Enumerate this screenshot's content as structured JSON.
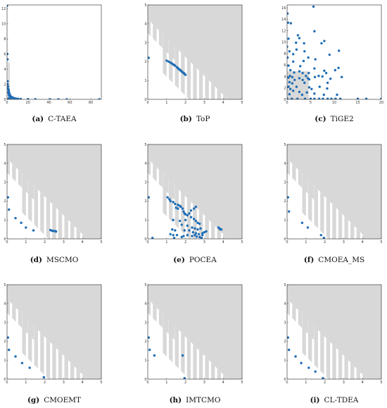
{
  "chart_data": [
    {
      "type": "scatter",
      "caption": {
        "letter": "(a)",
        "name": "C-TAEA"
      },
      "xlim": [
        0,
        90
      ],
      "ylim": [
        0,
        12.5
      ],
      "xticks": [
        0,
        20,
        40,
        60,
        80
      ],
      "yticks": [
        0,
        2,
        4,
        6,
        8,
        10,
        12
      ],
      "feasible_rect": [
        1.0,
        2.6,
        0,
        4.9
      ],
      "points": [
        [
          0,
          12.4
        ],
        [
          0.3,
          6.0
        ],
        [
          0.5,
          5.3
        ],
        [
          0.6,
          2.4
        ],
        [
          0.5,
          2.0
        ],
        [
          1.0,
          1.7
        ],
        [
          0.8,
          1.4
        ],
        [
          1.5,
          1.3
        ],
        [
          1.6,
          1.1
        ],
        [
          1.2,
          0.9
        ],
        [
          2.0,
          0.9
        ],
        [
          2.3,
          0.7
        ],
        [
          1.7,
          0.6
        ],
        [
          2.8,
          0.55
        ],
        [
          3.2,
          0.45
        ],
        [
          2.4,
          0.4
        ],
        [
          3.7,
          0.35
        ],
        [
          4.2,
          0.3
        ],
        [
          4.6,
          0.28
        ],
        [
          5.1,
          0.25
        ],
        [
          5.5,
          0.22
        ],
        [
          6.0,
          0.2
        ],
        [
          3.9,
          0.15
        ],
        [
          6.5,
          0.15
        ],
        [
          7.3,
          0.12
        ],
        [
          8.5,
          0.1
        ],
        [
          10.5,
          0.08
        ],
        [
          13,
          0.05
        ],
        [
          20,
          0.03
        ],
        [
          27,
          0.02
        ],
        [
          41,
          0.01
        ],
        [
          49,
          0.01
        ],
        [
          57,
          0.01
        ],
        [
          88,
          0.0
        ],
        [
          1.5,
          0.1
        ],
        [
          2.8,
          0.05
        ]
      ]
    },
    {
      "type": "scatter",
      "caption": {
        "letter": "(b)",
        "name": "ToP"
      },
      "xlim": [
        0,
        5
      ],
      "ylim": [
        0,
        5
      ],
      "xticks": [
        0,
        1,
        2,
        3,
        4,
        5
      ],
      "yticks": [
        0,
        1,
        2,
        3,
        4,
        5
      ],
      "points": [
        [
          0.05,
          2.2
        ],
        [
          1.0,
          2.05
        ],
        [
          1.1,
          2.0
        ],
        [
          1.2,
          1.95
        ],
        [
          1.28,
          1.9
        ],
        [
          1.35,
          1.85
        ],
        [
          1.4,
          1.82
        ],
        [
          1.45,
          1.78
        ],
        [
          1.55,
          1.7
        ],
        [
          1.6,
          1.65
        ],
        [
          1.65,
          1.6
        ],
        [
          1.7,
          1.57
        ],
        [
          1.75,
          1.52
        ],
        [
          1.8,
          1.48
        ],
        [
          1.85,
          1.43
        ],
        [
          1.9,
          1.4
        ],
        [
          1.95,
          1.35
        ],
        [
          2.0,
          1.3
        ],
        [
          1.72,
          1.55
        ],
        [
          1.92,
          1.38
        ]
      ]
    },
    {
      "type": "scatter",
      "caption": {
        "letter": "(c)",
        "name": "TiGE2"
      },
      "xlim": [
        0,
        20
      ],
      "ylim": [
        0,
        16.5
      ],
      "xticks": [
        0,
        5,
        10,
        15,
        20
      ],
      "yticks": [
        0,
        2,
        4,
        6,
        8,
        10,
        12,
        14,
        16
      ],
      "feasible_rect": [
        0,
        4.6,
        0,
        4.9
      ],
      "points": [
        [
          5.6,
          16.2
        ],
        [
          0.1,
          15.0
        ],
        [
          0.2,
          13.4
        ],
        [
          0.8,
          13.3
        ],
        [
          2.3,
          11.2
        ],
        [
          0.3,
          10.6
        ],
        [
          2.6,
          10.7
        ],
        [
          1.9,
          9.9
        ],
        [
          3.6,
          9.8
        ],
        [
          7.3,
          9.8
        ],
        [
          11.0,
          8.5
        ],
        [
          7.9,
          10.2
        ],
        [
          5.8,
          11.9
        ],
        [
          0.0,
          9.2
        ],
        [
          2.0,
          8.7
        ],
        [
          0.5,
          8.4
        ],
        [
          3.7,
          8.4
        ],
        [
          1.3,
          7.9
        ],
        [
          0.1,
          7.3
        ],
        [
          4.5,
          7.3
        ],
        [
          9.0,
          7.8
        ],
        [
          1.3,
          6.6
        ],
        [
          3.5,
          6.7
        ],
        [
          0.3,
          5.9
        ],
        [
          2.8,
          5.8
        ],
        [
          6.0,
          7.0
        ],
        [
          5.8,
          5.4
        ],
        [
          10.9,
          5.5
        ],
        [
          7.9,
          5.0
        ],
        [
          10.2,
          5.1
        ],
        [
          0.7,
          5.1
        ],
        [
          2.6,
          4.9
        ],
        [
          1.5,
          4.7
        ],
        [
          3.3,
          4.6
        ],
        [
          4.6,
          4.6
        ],
        [
          8.3,
          4.6
        ],
        [
          4.0,
          4.1
        ],
        [
          0.6,
          4.1
        ],
        [
          1.1,
          3.9
        ],
        [
          5.9,
          3.9
        ],
        [
          6.7,
          4.1
        ],
        [
          7.5,
          4.0
        ],
        [
          11.6,
          3.9
        ],
        [
          0.3,
          3.8
        ],
        [
          2.6,
          3.7
        ],
        [
          4.4,
          3.7
        ],
        [
          9.2,
          3.6
        ],
        [
          1.6,
          3.4
        ],
        [
          3.3,
          3.4
        ],
        [
          4.7,
          3.5
        ],
        [
          0.5,
          3.0
        ],
        [
          1.1,
          2.8
        ],
        [
          3.7,
          2.9
        ],
        [
          8.6,
          2.9
        ],
        [
          0.3,
          2.2
        ],
        [
          2.0,
          2.2
        ],
        [
          4.7,
          2.1
        ],
        [
          6.9,
          2.2
        ],
        [
          0.7,
          1.8
        ],
        [
          5.2,
          1.8
        ],
        [
          8.5,
          1.9
        ],
        [
          1.3,
          1.5
        ],
        [
          2.6,
          1.3
        ],
        [
          4.2,
          1.2
        ],
        [
          5.8,
          1.0
        ],
        [
          0.5,
          0.9
        ],
        [
          3.2,
          0.8
        ],
        [
          7.8,
          0.8
        ],
        [
          10.6,
          0.8
        ],
        [
          0.0,
          0.1
        ],
        [
          1.0,
          0.1
        ],
        [
          2.2,
          0.1
        ],
        [
          3.8,
          0.1
        ],
        [
          5.0,
          0.1
        ],
        [
          5.8,
          0.1
        ],
        [
          6.8,
          0.1
        ],
        [
          7.6,
          0.1
        ],
        [
          8.6,
          0.1
        ],
        [
          9.4,
          0.1
        ],
        [
          10.3,
          0.1
        ],
        [
          11.3,
          0.1
        ],
        [
          15.0,
          0.1
        ],
        [
          16.8,
          0.1
        ],
        [
          20.0,
          0.1
        ]
      ]
    },
    {
      "type": "scatter",
      "caption": {
        "letter": "(d)",
        "name": "MSCMO"
      },
      "xlim": [
        0,
        5
      ],
      "ylim": [
        0,
        5
      ],
      "xticks": [
        0,
        1,
        2,
        3,
        4,
        5
      ],
      "yticks": [
        0,
        1,
        2,
        3,
        4,
        5
      ],
      "points": [
        [
          0.05,
          2.2
        ],
        [
          0.1,
          1.55
        ],
        [
          0.45,
          1.1
        ],
        [
          0.75,
          0.85
        ],
        [
          1.0,
          0.6
        ],
        [
          1.4,
          0.45
        ],
        [
          2.3,
          0.47
        ],
        [
          2.38,
          0.43
        ],
        [
          2.45,
          0.42
        ],
        [
          2.55,
          0.41
        ],
        [
          2.6,
          0.39
        ]
      ]
    },
    {
      "type": "scatter",
      "caption": {
        "letter": "(e)",
        "name": "POCEA"
      },
      "xlim": [
        0,
        5
      ],
      "ylim": [
        0,
        5
      ],
      "xticks": [
        0,
        1,
        2,
        3,
        4,
        5
      ],
      "yticks": [
        0,
        1,
        2,
        3,
        4,
        5
      ],
      "points": [
        [
          0.05,
          2.2
        ],
        [
          1.05,
          2.2
        ],
        [
          1.15,
          2.1
        ],
        [
          1.2,
          2.0
        ],
        [
          1.35,
          1.95
        ],
        [
          1.45,
          1.85
        ],
        [
          1.6,
          1.8
        ],
        [
          1.7,
          1.75
        ],
        [
          1.5,
          1.65
        ],
        [
          1.6,
          1.6
        ],
        [
          1.75,
          1.7
        ],
        [
          1.85,
          1.6
        ],
        [
          1.9,
          1.45
        ],
        [
          1.95,
          1.35
        ],
        [
          2.0,
          1.3
        ],
        [
          2.1,
          1.25
        ],
        [
          2.2,
          1.35
        ],
        [
          2.3,
          1.5
        ],
        [
          2.45,
          1.6
        ],
        [
          2.55,
          1.7
        ],
        [
          2.3,
          1.15
        ],
        [
          2.45,
          1.05
        ],
        [
          2.55,
          0.95
        ],
        [
          2.65,
          0.85
        ],
        [
          2.75,
          0.8
        ],
        [
          1.35,
          1.0
        ],
        [
          1.7,
          0.95
        ],
        [
          2.0,
          1.0
        ],
        [
          1.8,
          0.75
        ],
        [
          2.1,
          0.7
        ],
        [
          2.35,
          0.6
        ],
        [
          2.5,
          0.55
        ],
        [
          2.65,
          0.5
        ],
        [
          2.8,
          0.55
        ],
        [
          1.3,
          0.5
        ],
        [
          1.45,
          0.45
        ],
        [
          1.95,
          0.45
        ],
        [
          2.2,
          0.45
        ],
        [
          2.4,
          0.35
        ],
        [
          2.55,
          0.3
        ],
        [
          2.7,
          0.25
        ],
        [
          2.9,
          0.3
        ],
        [
          1.2,
          0.25
        ],
        [
          1.35,
          0.2
        ],
        [
          1.55,
          0.2
        ],
        [
          1.9,
          0.15
        ],
        [
          2.1,
          0.2
        ],
        [
          2.35,
          0.15
        ],
        [
          2.5,
          0.2
        ],
        [
          2.6,
          0.12
        ],
        [
          2.75,
          0.1
        ],
        [
          2.85,
          0.05
        ],
        [
          2.9,
          0.2
        ],
        [
          3.0,
          0.35
        ],
        [
          3.1,
          0.4
        ],
        [
          0.25,
          0.05
        ],
        [
          3.75,
          0.6
        ],
        [
          3.8,
          0.55
        ],
        [
          3.85,
          0.5
        ],
        [
          3.9,
          0.5
        ],
        [
          1.4,
          0.05
        ],
        [
          1.8,
          0.1
        ]
      ]
    },
    {
      "type": "scatter",
      "caption": {
        "letter": "(f)",
        "name": "CMOEA_MS"
      },
      "xlim": [
        0,
        5
      ],
      "ylim": [
        0,
        5
      ],
      "xticks": [
        0,
        1,
        2,
        3,
        4,
        5
      ],
      "yticks": [
        0,
        1,
        2,
        3,
        4,
        5
      ],
      "points": [
        [
          0.05,
          2.2
        ],
        [
          0.1,
          1.45
        ],
        [
          0.8,
          0.85
        ],
        [
          1.1,
          0.6
        ],
        [
          1.8,
          0.2
        ],
        [
          1.95,
          0.05
        ]
      ]
    },
    {
      "type": "scatter",
      "caption": {
        "letter": "(g)",
        "name": "CMOEMT"
      },
      "xlim": [
        0,
        5
      ],
      "ylim": [
        0,
        5
      ],
      "xticks": [
        0,
        1,
        2,
        3,
        4,
        5
      ],
      "yticks": [
        0,
        1,
        2,
        3,
        4,
        5
      ],
      "points": [
        [
          0.05,
          2.2
        ],
        [
          0.1,
          1.55
        ],
        [
          0.45,
          1.2
        ],
        [
          0.8,
          0.85
        ],
        [
          1.2,
          0.6
        ],
        [
          1.95,
          0.1
        ]
      ]
    },
    {
      "type": "scatter",
      "caption": {
        "letter": "(h)",
        "name": "IMTCMO"
      },
      "xlim": [
        0,
        5
      ],
      "ylim": [
        0,
        5
      ],
      "xticks": [
        0,
        1,
        2,
        3,
        4,
        5
      ],
      "yticks": [
        0,
        1,
        2,
        3,
        4,
        5
      ],
      "points": [
        [
          0.05,
          2.2
        ],
        [
          0.1,
          1.55
        ],
        [
          0.35,
          1.25
        ],
        [
          1.85,
          1.25
        ],
        [
          1.95,
          0.05
        ]
      ]
    },
    {
      "type": "scatter",
      "caption": {
        "letter": "(i)",
        "name": "CL-TDEA"
      },
      "xlim": [
        0,
        5
      ],
      "ylim": [
        0,
        5
      ],
      "xticks": [
        0,
        1,
        2,
        3,
        4,
        5
      ],
      "yticks": [
        0,
        1,
        2,
        3,
        4,
        5
      ],
      "points": [
        [
          0.05,
          2.2
        ],
        [
          0.1,
          1.55
        ],
        [
          0.45,
          1.2
        ],
        [
          0.75,
          0.85
        ],
        [
          1.15,
          0.6
        ],
        [
          1.5,
          0.4
        ],
        [
          1.9,
          0.05
        ]
      ]
    }
  ]
}
